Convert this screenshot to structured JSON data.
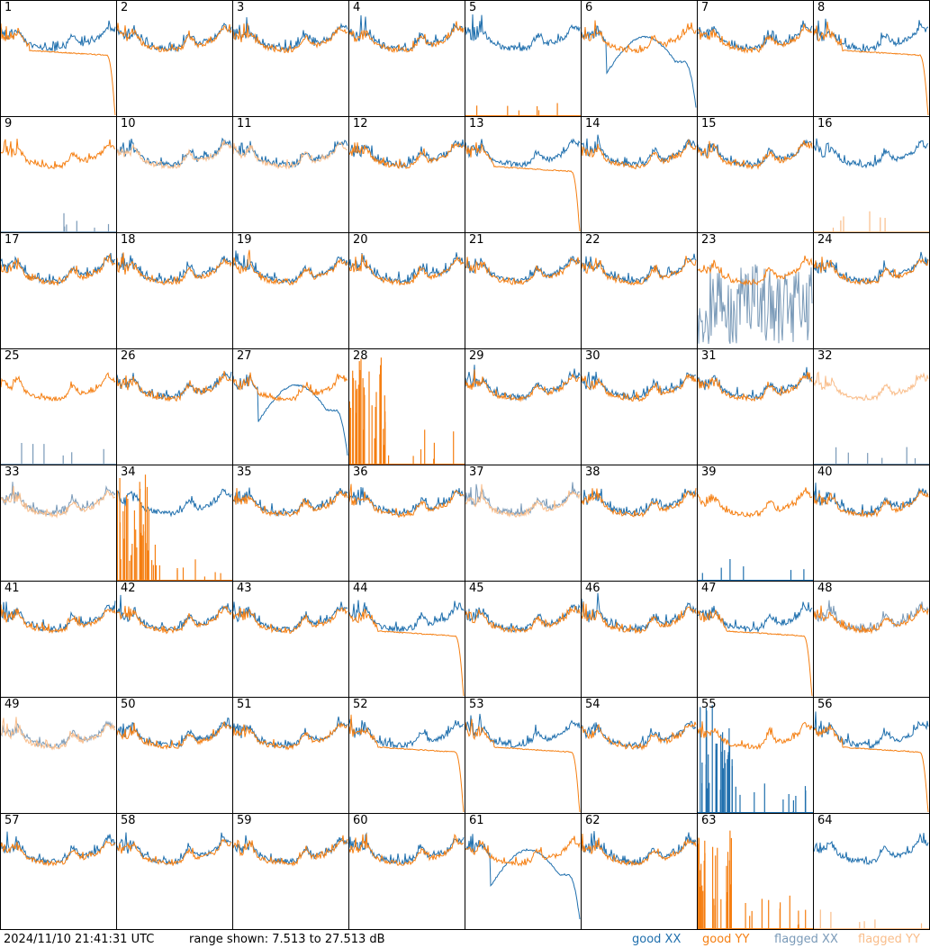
{
  "timestamp": "2024/11/10 21:41:31 UTC",
  "range_text": "range shown: 7.513 to 27.513 dB",
  "legend": [
    {
      "label": "good XX",
      "color": "#1f6fad"
    },
    {
      "label": "good YY",
      "color": "#f57f12"
    },
    {
      "label": "flagged XX",
      "color": "#7a9ab8"
    },
    {
      "label": "flagged YY",
      "color": "#f9bd8a"
    }
  ],
  "chart_data": {
    "type": "line",
    "grid": "8x8",
    "ylim": [
      7.513,
      27.513
    ],
    "panels": [
      {
        "n": "1",
        "xx": "good",
        "yy": "good",
        "yy_shape": "droop"
      },
      {
        "n": "2",
        "xx": "good",
        "yy": "good"
      },
      {
        "n": "3",
        "xx": "good",
        "yy": "good"
      },
      {
        "n": "4",
        "xx": "good",
        "yy": "good"
      },
      {
        "n": "5",
        "xx": "good",
        "yy": "spikes"
      },
      {
        "n": "6",
        "xx": "good",
        "yy": "good",
        "xx_shape": "dip"
      },
      {
        "n": "7",
        "xx": "good",
        "yy": "good"
      },
      {
        "n": "8",
        "xx": "good",
        "yy": "good",
        "yy_shape": "droop"
      },
      {
        "n": "9",
        "xx": "flagged_spikes",
        "yy": "good"
      },
      {
        "n": "10",
        "xx": "good",
        "yy": "flagged"
      },
      {
        "n": "11",
        "xx": "good",
        "yy": "flagged"
      },
      {
        "n": "12",
        "xx": "good",
        "yy": "good"
      },
      {
        "n": "13",
        "xx": "good",
        "yy": "good",
        "yy_shape": "droop"
      },
      {
        "n": "14",
        "xx": "good",
        "yy": "good"
      },
      {
        "n": "15",
        "xx": "good",
        "yy": "good"
      },
      {
        "n": "16",
        "xx": "good",
        "yy": "flagged_spikes"
      },
      {
        "n": "17",
        "xx": "good",
        "yy": "good"
      },
      {
        "n": "18",
        "xx": "good",
        "yy": "good"
      },
      {
        "n": "19",
        "xx": "good",
        "yy": "good"
      },
      {
        "n": "20",
        "xx": "good",
        "yy": "good"
      },
      {
        "n": "21",
        "xx": "good",
        "yy": "good"
      },
      {
        "n": "22",
        "xx": "good",
        "yy": "good"
      },
      {
        "n": "23",
        "xx": "flagged_noise",
        "yy": "good"
      },
      {
        "n": "24",
        "xx": "good",
        "yy": "good"
      },
      {
        "n": "25",
        "xx": "flagged_spikes",
        "yy": "good"
      },
      {
        "n": "26",
        "xx": "good",
        "yy": "good"
      },
      {
        "n": "27",
        "xx": "good",
        "yy": "good",
        "xx_shape": "dip"
      },
      {
        "n": "28",
        "xx": "none",
        "yy": "spikes_big"
      },
      {
        "n": "29",
        "xx": "good",
        "yy": "good"
      },
      {
        "n": "30",
        "xx": "good",
        "yy": "good"
      },
      {
        "n": "31",
        "xx": "good",
        "yy": "good"
      },
      {
        "n": "32",
        "xx": "flagged_spikes",
        "yy": "flagged"
      },
      {
        "n": "33",
        "xx": "flagged",
        "yy": "flagged"
      },
      {
        "n": "34",
        "xx": "good",
        "yy": "spikes_big"
      },
      {
        "n": "35",
        "xx": "good",
        "yy": "good"
      },
      {
        "n": "36",
        "xx": "good",
        "yy": "good"
      },
      {
        "n": "37",
        "xx": "flagged",
        "yy": "flagged"
      },
      {
        "n": "38",
        "xx": "good",
        "yy": "good"
      },
      {
        "n": "39",
        "xx": "spikes",
        "yy": "good"
      },
      {
        "n": "40",
        "xx": "good",
        "yy": "good"
      },
      {
        "n": "41",
        "xx": "good",
        "yy": "good"
      },
      {
        "n": "42",
        "xx": "good",
        "yy": "good"
      },
      {
        "n": "43",
        "xx": "good",
        "yy": "good"
      },
      {
        "n": "44",
        "xx": "good",
        "yy": "good",
        "yy_shape": "droop"
      },
      {
        "n": "45",
        "xx": "good",
        "yy": "good"
      },
      {
        "n": "46",
        "xx": "good",
        "yy": "good"
      },
      {
        "n": "47",
        "xx": "good",
        "yy": "good",
        "yy_shape": "droop"
      },
      {
        "n": "48",
        "xx": "flagged",
        "yy": "good"
      },
      {
        "n": "49",
        "xx": "flagged",
        "yy": "flagged"
      },
      {
        "n": "50",
        "xx": "good",
        "yy": "good"
      },
      {
        "n": "51",
        "xx": "good",
        "yy": "good"
      },
      {
        "n": "52",
        "xx": "good",
        "yy": "good",
        "yy_shape": "droop"
      },
      {
        "n": "53",
        "xx": "good",
        "yy": "good",
        "yy_shape": "droop"
      },
      {
        "n": "54",
        "xx": "good",
        "yy": "good"
      },
      {
        "n": "55",
        "xx": "spikes_big",
        "yy": "good"
      },
      {
        "n": "56",
        "xx": "good",
        "yy": "good",
        "yy_shape": "droop"
      },
      {
        "n": "57",
        "xx": "good",
        "yy": "good"
      },
      {
        "n": "58",
        "xx": "good",
        "yy": "good"
      },
      {
        "n": "59",
        "xx": "good",
        "yy": "good"
      },
      {
        "n": "60",
        "xx": "good",
        "yy": "good"
      },
      {
        "n": "61",
        "xx": "good",
        "yy": "good",
        "xx_shape": "dip"
      },
      {
        "n": "62",
        "xx": "good",
        "yy": "good"
      },
      {
        "n": "63",
        "xx": "none",
        "yy": "spikes_big"
      },
      {
        "n": "64",
        "xx": "good",
        "yy": "flagged_spikes"
      }
    ]
  }
}
